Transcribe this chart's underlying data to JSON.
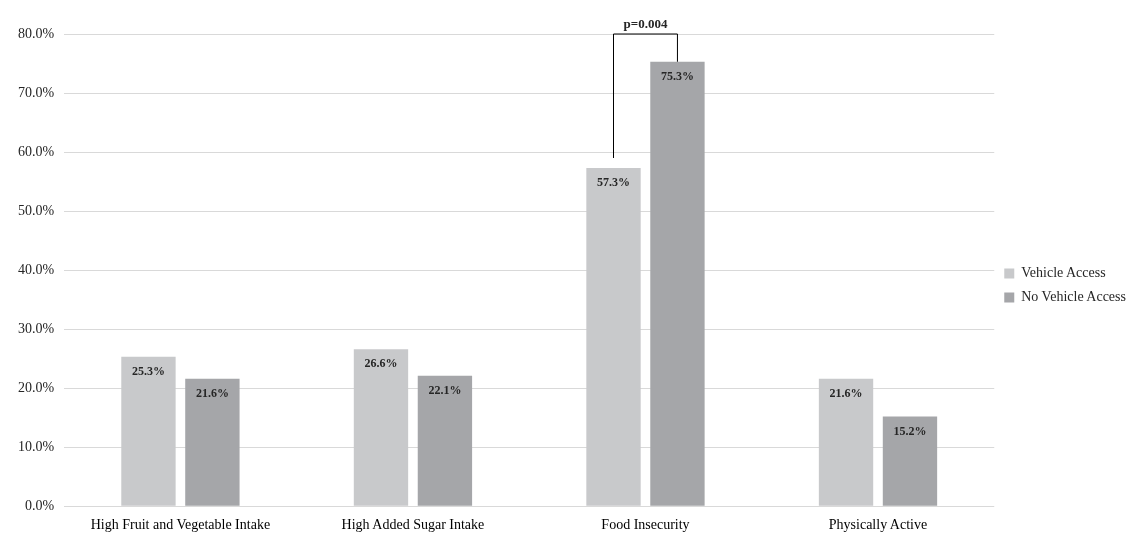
{
  "chart_data": {
    "type": "bar",
    "categories": [
      "High Fruit and Vegetable Intake",
      "High Added Sugar Intake",
      "Food Insecurity",
      "Physically Active"
    ],
    "series": [
      {
        "name": "Vehicle Access",
        "color": "#c8c9cb",
        "values": [
          25.3,
          26.6,
          57.3,
          21.6
        ],
        "value_labels": [
          "25.3%",
          "26.6%",
          "57.3%",
          "21.6%"
        ]
      },
      {
        "name": "No Vehicle Access",
        "color": "#a5a6a9",
        "values": [
          21.6,
          22.1,
          75.3,
          15.2
        ],
        "value_labels": [
          "21.6%",
          "22.1%",
          "75.3%",
          "15.2%"
        ]
      }
    ],
    "ylim": [
      0,
      80
    ],
    "yticks": [
      {
        "value": 0,
        "label": "0.0%"
      },
      {
        "value": 10,
        "label": "10.0%"
      },
      {
        "value": 20,
        "label": "20.0%"
      },
      {
        "value": 30,
        "label": "30.0%"
      },
      {
        "value": 40,
        "label": "40.0%"
      },
      {
        "value": 50,
        "label": "50.0%"
      },
      {
        "value": 60,
        "label": "60.0%"
      },
      {
        "value": 70,
        "label": "70.0%"
      },
      {
        "value": 80,
        "label": "80.0%"
      }
    ],
    "grid": "y",
    "legend": "right",
    "annotations": [
      "p=0.004"
    ]
  }
}
